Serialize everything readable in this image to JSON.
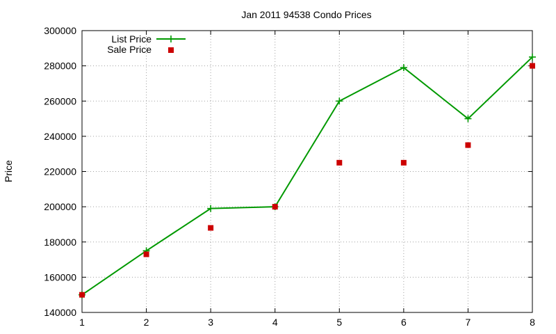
{
  "chart_data": {
    "type": "line",
    "title": "Jan 2011 94538 Condo Prices",
    "xlabel": "",
    "ylabel": "Price",
    "x": [
      1,
      2,
      3,
      4,
      5,
      6,
      7,
      8
    ],
    "xlim": [
      1,
      8
    ],
    "ylim": [
      140000,
      300000
    ],
    "xticks": [
      "1",
      "2",
      "3",
      "4",
      "5",
      "6",
      "7",
      "8"
    ],
    "yticks": [
      "140000",
      "160000",
      "180000",
      "200000",
      "220000",
      "240000",
      "260000",
      "280000",
      "300000"
    ],
    "grid": true,
    "legend_position": "top-left",
    "series": [
      {
        "name": "List Price",
        "style": "line-with-plus-markers",
        "color": "#009900",
        "values": [
          150000,
          175000,
          199000,
          200000,
          260000,
          279000,
          250000,
          285000
        ]
      },
      {
        "name": "Sale Price",
        "style": "square-markers",
        "color": "#cc0000",
        "values": [
          150000,
          173000,
          188000,
          200000,
          225000,
          225000,
          235000,
          280000
        ]
      }
    ]
  }
}
